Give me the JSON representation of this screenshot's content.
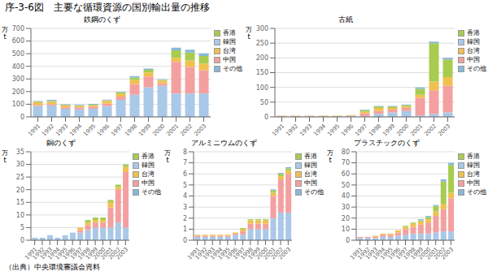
{
  "title": "序-3-6図　主要な循環資源の国別輸出量の推移",
  "annotations": [
    "（出典）中央環境審議会資料"
  ],
  "chart_data": [
    {
      "type": "bar",
      "stacked": true,
      "grid": true,
      "legend": "right",
      "title": "鉄鋼のくず",
      "ylabel": "万\nt",
      "categories": [
        "1991",
        "1992",
        "1993",
        "1994",
        "1995",
        "1996",
        "1997",
        "1998",
        "1999",
        "2000",
        "2001",
        "2002",
        "2003"
      ],
      "ylim": [
        0,
        700
      ],
      "yticks": [
        0,
        100,
        200,
        300,
        400,
        500,
        600,
        700
      ],
      "series": [
        {
          "name": "韓国",
          "color": "#aac8e8",
          "values": [
            85,
            90,
            65,
            60,
            65,
            85,
            135,
            175,
            235,
            245,
            185,
            185,
            185
          ]
        },
        {
          "name": "中国",
          "color": "#f4a0a0",
          "values": [
            10,
            10,
            10,
            15,
            15,
            20,
            25,
            85,
            85,
            20,
            250,
            210,
            185
          ]
        },
        {
          "name": "台湾",
          "color": "#f0c050",
          "values": [
            20,
            20,
            15,
            12,
            12,
            22,
            22,
            32,
            32,
            22,
            32,
            52,
            52
          ]
        },
        {
          "name": "香港",
          "color": "#a8cc50",
          "values": [
            5,
            5,
            5,
            5,
            5,
            5,
            10,
            20,
            20,
            5,
            60,
            62,
            60
          ]
        },
        {
          "name": "その他",
          "color": "#88b8d8",
          "values": [
            5,
            10,
            5,
            5,
            5,
            5,
            5,
            10,
            10,
            5,
            20,
            22,
            20
          ]
        }
      ]
    },
    {
      "type": "bar",
      "stacked": true,
      "grid": true,
      "legend": "right",
      "title": "古紙",
      "ylabel": "万\nt",
      "categories": [
        "1991",
        "1992",
        "1993",
        "1994",
        "1995",
        "1996",
        "1997",
        "1998",
        "1999",
        "2000",
        "2001",
        "2002",
        "2003"
      ],
      "ylim": [
        0,
        300
      ],
      "yticks": [
        0,
        50,
        100,
        150,
        200,
        250,
        300
      ],
      "series": [
        {
          "name": "韓国",
          "color": "#aac8e8",
          "values": [
            2,
            2,
            2,
            2,
            2,
            2,
            2,
            10,
            15,
            20,
            5,
            10,
            15
          ]
        },
        {
          "name": "中国",
          "color": "#f4a0a0",
          "values": [
            1,
            1,
            1,
            1,
            1,
            2,
            10,
            10,
            10,
            10,
            60,
            80,
            90
          ]
        },
        {
          "name": "台湾",
          "color": "#f0c050",
          "values": [
            1,
            1,
            1,
            1,
            1,
            2,
            5,
            10,
            5,
            5,
            10,
            30,
            30
          ]
        },
        {
          "name": "香港",
          "color": "#a8cc50",
          "values": [
            0,
            0,
            0,
            0,
            0,
            0,
            5,
            5,
            5,
            5,
            20,
            130,
            60
          ]
        },
        {
          "name": "その他",
          "color": "#88b8d8",
          "values": [
            0,
            0,
            0,
            0,
            0,
            0,
            2,
            2,
            2,
            2,
            5,
            5,
            5
          ]
        }
      ]
    },
    {
      "type": "bar",
      "stacked": true,
      "grid": true,
      "legend": "right",
      "title": "銅のくず",
      "ylabel": "万\nt",
      "categories": [
        "1991",
        "1992",
        "1993",
        "1994",
        "1995",
        "1996",
        "1997",
        "1998",
        "1999",
        "2000",
        "2001",
        "2002",
        "2003"
      ],
      "ylim": [
        0,
        35
      ],
      "yticks": [
        0,
        5,
        10,
        15,
        20,
        25,
        30,
        35
      ],
      "series": [
        {
          "name": "韓国",
          "color": "#aac8e8",
          "values": [
            1,
            1,
            2,
            1,
            2,
            3,
            3,
            4,
            5,
            5,
            5,
            7,
            5
          ]
        },
        {
          "name": "中国",
          "color": "#f4a0a0",
          "values": [
            0,
            0,
            0,
            0,
            0,
            0,
            1,
            2,
            2,
            2,
            8,
            13,
            22
          ]
        },
        {
          "name": "台湾",
          "color": "#f0c050",
          "values": [
            0,
            0,
            0,
            0,
            0,
            0,
            1,
            1,
            1,
            1,
            2,
            1,
            2
          ]
        },
        {
          "name": "香港",
          "color": "#a8cc50",
          "values": [
            0,
            0,
            0,
            0,
            0,
            0,
            0,
            1,
            1,
            1,
            1,
            1,
            1
          ]
        },
        {
          "name": "その他",
          "color": "#88b8d8",
          "values": [
            0,
            0,
            0,
            0,
            0,
            0,
            0,
            0,
            0,
            0,
            0,
            0,
            0
          ]
        }
      ]
    },
    {
      "type": "bar",
      "stacked": true,
      "grid": true,
      "legend": "right",
      "title": "アルミニウムのくず",
      "ylabel": "万\nt",
      "categories": [
        "1991",
        "1992",
        "1993",
        "1994",
        "1995",
        "1996",
        "1997",
        "1998",
        "1999",
        "2000",
        "2001",
        "2002",
        "2003"
      ],
      "ylim": [
        0,
        8
      ],
      "yticks": [
        0,
        1,
        2,
        3,
        4,
        5,
        6,
        7,
        8
      ],
      "series": [
        {
          "name": "韓国",
          "color": "#aac8e8",
          "values": [
            0.3,
            0.3,
            0.3,
            0.3,
            0.3,
            0.5,
            0.5,
            1.0,
            1.0,
            1.0,
            2.0,
            2.5,
            2.5
          ]
        },
        {
          "name": "中国",
          "color": "#f4a0a0",
          "values": [
            0.1,
            0.1,
            0.1,
            0.1,
            0.1,
            0.1,
            0.3,
            0.5,
            0.5,
            0.5,
            2.0,
            3.0,
            3.5
          ]
        },
        {
          "name": "台湾",
          "color": "#f0c050",
          "values": [
            0.1,
            0.1,
            0.1,
            0.1,
            0.1,
            0.1,
            0.2,
            0.3,
            0.3,
            0.3,
            0.3,
            0.3,
            0.3
          ]
        },
        {
          "name": "香港",
          "color": "#a8cc50",
          "values": [
            0.0,
            0.0,
            0.0,
            0.0,
            0.0,
            0.0,
            0.1,
            0.1,
            0.1,
            0.1,
            0.2,
            0.2,
            0.2
          ]
        },
        {
          "name": "その他",
          "color": "#88b8d8",
          "values": [
            0.0,
            0.0,
            0.0,
            0.0,
            0.0,
            0.0,
            0.0,
            0.0,
            0.0,
            0.0,
            0.1,
            0.1,
            0.1
          ]
        }
      ]
    },
    {
      "type": "bar",
      "stacked": true,
      "grid": true,
      "legend": "right",
      "title": "プラスチックのくず",
      "ylabel": "万\nt",
      "categories": [
        "1991",
        "1992",
        "1993",
        "1994",
        "1995",
        "1996",
        "1997",
        "1998",
        "1999",
        "2000",
        "2001",
        "2002",
        "2003"
      ],
      "ylim": [
        0,
        80
      ],
      "yticks": [
        0,
        10,
        20,
        30,
        40,
        50,
        60,
        70,
        80
      ],
      "series": [
        {
          "name": "韓国",
          "color": "#aac8e8",
          "values": [
            2,
            2,
            2,
            3,
            3,
            4,
            5,
            6,
            6,
            6,
            7,
            8,
            8
          ]
        },
        {
          "name": "中国",
          "color": "#f4a0a0",
          "values": [
            1,
            1,
            1,
            2,
            2,
            3,
            5,
            6,
            8,
            10,
            15,
            20,
            30
          ]
        },
        {
          "name": "台湾",
          "color": "#f0c050",
          "values": [
            0,
            0,
            1,
            1,
            1,
            2,
            2,
            3,
            3,
            3,
            4,
            5,
            5
          ]
        },
        {
          "name": "香港",
          "color": "#a8cc50",
          "values": [
            0,
            0,
            0,
            0,
            0,
            0,
            1,
            1,
            1,
            2,
            5,
            20,
            25
          ]
        },
        {
          "name": "その他",
          "color": "#88b8d8",
          "values": [
            0,
            0,
            0,
            0,
            0,
            0,
            0,
            0,
            1,
            1,
            1,
            2,
            2
          ]
        }
      ]
    }
  ]
}
